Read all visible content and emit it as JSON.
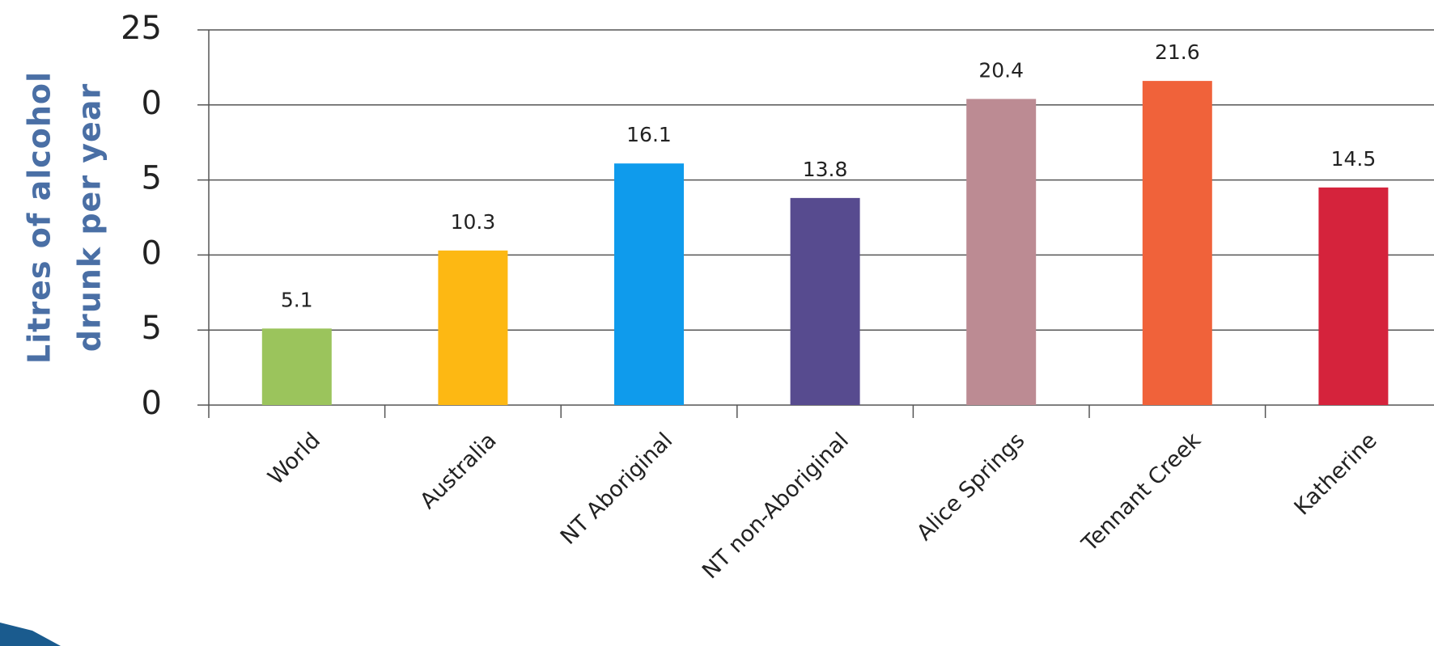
{
  "chart_data": {
    "type": "bar",
    "ylabel": [
      "Litres of alcohol",
      "drunk per year"
    ],
    "categories": [
      "World",
      "Australia",
      "NT Aboriginal",
      "NT non-Aboriginal",
      "Alice Springs",
      "Tennant Creek",
      "Katherine"
    ],
    "values": [
      5.1,
      10.3,
      16.1,
      13.8,
      20.4,
      21.6,
      14.5
    ],
    "colors": [
      "#9bc45c",
      "#fdb813",
      "#0f9bec",
      "#574b8f",
      "#bc8b93",
      "#f0623a",
      "#d5233c"
    ],
    "ylim": [
      0,
      25
    ],
    "yticks": [
      0,
      5,
      {
        "value": 10,
        "label": "0"
      },
      {
        "value": 15,
        "label": "5"
      },
      {
        "value": 20,
        "label": "0"
      },
      25
    ],
    "grid": true
  }
}
